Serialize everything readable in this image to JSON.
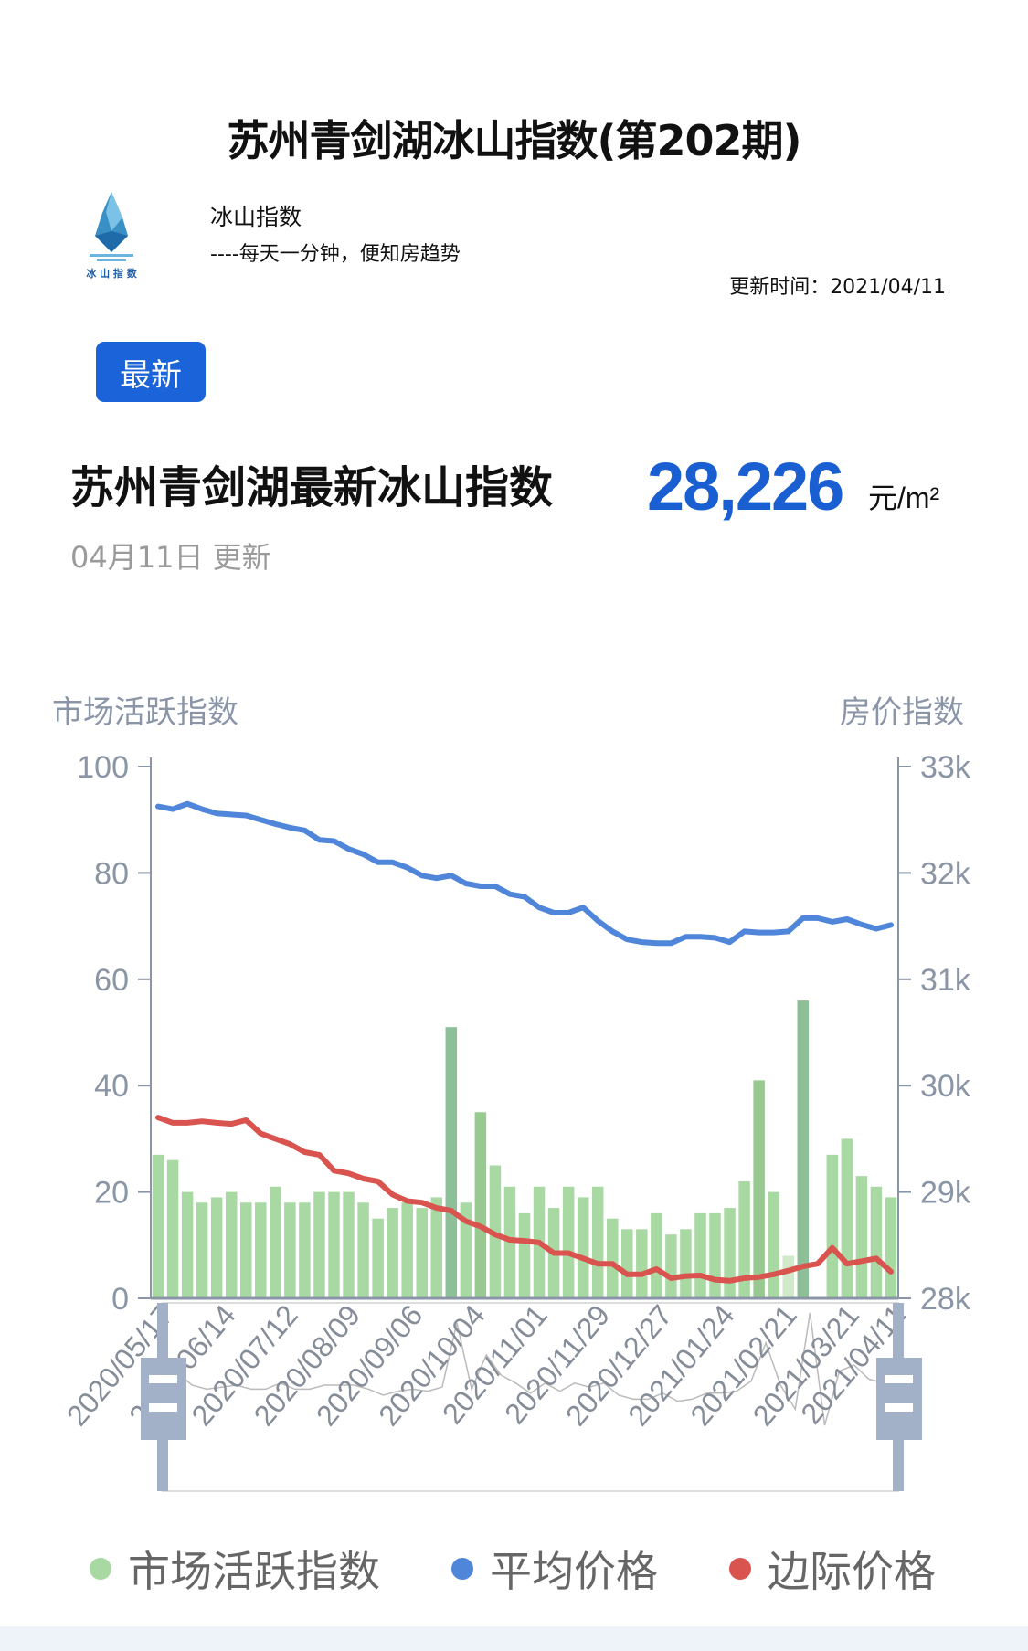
{
  "header": {
    "title": "苏州青剑湖冰山指数(第202期)",
    "logo_text": "冰 山 指 数",
    "brand": "冰山指数",
    "tagline": "----每天一分钟，便知房趋势",
    "update_time": "更新时间：2021/04/11"
  },
  "latest_button": "最新",
  "summary": {
    "heading": "苏州青剑湖最新冰山指数",
    "price": "28,226",
    "unit": "元/m²",
    "updated": "04月11日 更新"
  },
  "chart_data": {
    "type": "bar+line",
    "y_left_label": "市场活跃指数",
    "y_right_label": "房价指数",
    "y_left_range": [
      0,
      100
    ],
    "y_left_ticks": [
      "0",
      "20",
      "40",
      "60",
      "80",
      "100"
    ],
    "y_right_range": [
      28000,
      33000
    ],
    "y_right_ticks": [
      "28k",
      "29k",
      "30k",
      "31k",
      "32k",
      "33k"
    ],
    "x_tick_labels": [
      "2020/05/17",
      "2020/06/14",
      "2020/07/12",
      "2020/08/09",
      "2020/09/06",
      "2020/10/04",
      "2020/11/01",
      "2020/11/29",
      "2020/12/27",
      "2021/01/24",
      "2021/02/21",
      "2021/03/21",
      "2021/04/11"
    ],
    "grid": false,
    "legend_placement": "bottom",
    "series": [
      {
        "name": "市场活跃指数",
        "type": "bar",
        "axis": "left",
        "color": "#a9d9a3",
        "values": [
          27,
          26,
          20,
          18,
          19,
          20,
          18,
          18,
          21,
          18,
          18,
          20,
          20,
          20,
          18,
          15,
          17,
          18,
          17,
          19,
          51,
          18,
          35,
          25,
          21,
          16,
          21,
          17,
          21,
          19,
          21,
          15,
          13,
          13,
          16,
          12,
          13,
          16,
          16,
          17,
          22,
          41,
          20,
          8,
          56,
          0,
          27,
          30,
          23,
          21,
          19
        ]
      },
      {
        "name": "平均价格",
        "type": "line",
        "axis": "right",
        "color": "#4f86d9",
        "values": [
          32625,
          32600,
          32650,
          32600,
          32560,
          32550,
          32540,
          32500,
          32460,
          32425,
          32400,
          32310,
          32300,
          32225,
          32175,
          32100,
          32100,
          32050,
          31975,
          31950,
          31975,
          31900,
          31875,
          31875,
          31800,
          31775,
          31675,
          31625,
          31625,
          31675,
          31550,
          31450,
          31375,
          31350,
          31340,
          31340,
          31400,
          31400,
          31390,
          31350,
          31450,
          31440,
          31440,
          31450,
          31575,
          31575,
          31540,
          31565,
          31515,
          31475,
          31510
        ]
      },
      {
        "name": "边际价格",
        "type": "line",
        "axis": "right",
        "color": "#d9534f",
        "values": [
          29700,
          29650,
          29650,
          29665,
          29650,
          29640,
          29675,
          29550,
          29500,
          29450,
          29375,
          29350,
          29200,
          29175,
          29125,
          29100,
          28975,
          28915,
          28900,
          28850,
          28825,
          28725,
          28675,
          28600,
          28550,
          28540,
          28525,
          28425,
          28425,
          28375,
          28325,
          28325,
          28225,
          28225,
          28275,
          28190,
          28210,
          28215,
          28175,
          28165,
          28190,
          28200,
          28225,
          28260,
          28300,
          28325,
          28475,
          28325,
          28350,
          28375,
          28250
        ]
      }
    ],
    "bar_colors": {
      "normal": "#a9d9a3",
      "high": "#8dbf98",
      "medium": "#97c991",
      "low": "#cfe9c9"
    },
    "axis_color": "#8a95a5",
    "slider_color": "#a2b1c8"
  },
  "legend": [
    {
      "label": "市场活跃指数",
      "color": "#a9d9a3"
    },
    {
      "label": "平均价格",
      "color": "#4f86d9"
    },
    {
      "label": "边际价格",
      "color": "#d9534f"
    }
  ]
}
